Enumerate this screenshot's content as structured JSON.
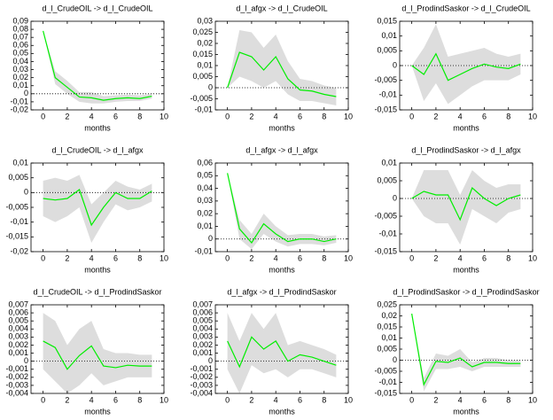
{
  "chart_data": [
    {
      "type": "line",
      "title": "d_l_CrudeOIL -> d_l_CrudeOIL",
      "xlabel": "months",
      "x": [
        0,
        1,
        2,
        3,
        4,
        5,
        6,
        7,
        8,
        9
      ],
      "xlim": [
        -1,
        10
      ],
      "xticks": [
        0,
        2,
        4,
        6,
        8,
        10
      ],
      "ylim": [
        -0.02,
        0.09
      ],
      "yticks": [
        {
          "value": -0.02,
          "label": "-0,02"
        },
        {
          "value": -0.01,
          "label": "-0,01"
        },
        0,
        {
          "value": 0.01,
          "label": "0,01"
        },
        {
          "value": 0.02,
          "label": "0,02"
        },
        {
          "value": 0.03,
          "label": "0,03"
        },
        {
          "value": 0.04,
          "label": "0,04"
        },
        {
          "value": 0.05,
          "label": "0,05"
        },
        {
          "value": 0.06,
          "label": "0,06"
        },
        {
          "value": 0.07,
          "label": "0,07"
        },
        {
          "value": 0.08,
          "label": "0,08"
        },
        {
          "value": 0.09,
          "label": "0,09"
        }
      ],
      "response": {
        "color": "#00ee00",
        "values": [
          0.078,
          0.02,
          0.008,
          -0.004,
          -0.005,
          -0.008,
          -0.006,
          -0.005,
          -0.006,
          -0.003
        ]
      },
      "band": {
        "color": "#dddddd",
        "lower": [
          0.078,
          0.012,
          0.0,
          -0.01,
          -0.012,
          -0.012,
          -0.01,
          -0.009,
          -0.009,
          -0.006
        ],
        "upper": [
          0.078,
          0.028,
          0.016,
          0.002,
          0.002,
          -0.003,
          -0.002,
          -0.001,
          -0.002,
          0.0
        ]
      }
    },
    {
      "type": "line",
      "title": "d_l_afgx -> d_l_CrudeOIL",
      "xlabel": "months",
      "x": [
        0,
        1,
        2,
        3,
        4,
        5,
        6,
        7,
        8,
        9
      ],
      "xlim": [
        -1,
        10
      ],
      "xticks": [
        0,
        2,
        4,
        6,
        8,
        10
      ],
      "ylim": [
        -0.01,
        0.03
      ],
      "yticks": [
        {
          "value": -0.01,
          "label": "-0,01"
        },
        {
          "value": -0.005,
          "label": "-0,005"
        },
        0,
        {
          "value": 0.005,
          "label": "0,005"
        },
        {
          "value": 0.01,
          "label": "0,01"
        },
        {
          "value": 0.015,
          "label": "0,015"
        },
        {
          "value": 0.02,
          "label": "0,02"
        },
        {
          "value": 0.025,
          "label": "0,025"
        },
        {
          "value": 0.03,
          "label": "0,03"
        }
      ],
      "response": {
        "color": "#00ee00",
        "values": [
          0,
          0.016,
          0.014,
          0.008,
          0.014,
          0.004,
          -0.001,
          -0.0015,
          -0.003,
          -0.004
        ]
      },
      "band": {
        "color": "#dddddd",
        "lower": [
          0,
          0.005,
          0.003,
          0,
          0.003,
          -0.003,
          -0.006,
          -0.006,
          -0.007,
          -0.008
        ],
        "upper": [
          0,
          0.026,
          0.025,
          0.018,
          0.024,
          0.012,
          0.004,
          0.003,
          0.001,
          0.0
        ]
      }
    },
    {
      "type": "line",
      "title": "d_l_ProdindSaskor -> d_l_CrudeOIL",
      "xlabel": "months",
      "x": [
        0,
        1,
        2,
        3,
        4,
        5,
        6,
        7,
        8,
        9
      ],
      "xlim": [
        -1,
        10
      ],
      "xticks": [
        0,
        2,
        4,
        6,
        8,
        10
      ],
      "ylim": [
        -0.015,
        0.015
      ],
      "yticks": [
        {
          "value": -0.015,
          "label": "-0,015"
        },
        {
          "value": -0.01,
          "label": "-0,01"
        },
        {
          "value": -0.005,
          "label": "-0,005"
        },
        0,
        {
          "value": 0.005,
          "label": "0,005"
        },
        {
          "value": 0.01,
          "label": "0,01"
        },
        {
          "value": 0.015,
          "label": "0,015"
        }
      ],
      "response": {
        "color": "#00ee00",
        "values": [
          0,
          -0.003,
          0.004,
          -0.005,
          -0.003,
          -0.001,
          0.0005,
          -0.0005,
          -0.001,
          0.0005
        ]
      },
      "band": {
        "color": "#dddddd",
        "lower": [
          0,
          -0.012,
          -0.006,
          -0.013,
          -0.01,
          -0.007,
          -0.005,
          -0.005,
          -0.005,
          -0.003
        ],
        "upper": [
          0,
          0.006,
          0.014,
          0.003,
          0.004,
          0.005,
          0.006,
          0.004,
          0.003,
          0.004
        ]
      }
    },
    {
      "type": "line",
      "title": "d_l_CrudeOIL -> d_l_afgx",
      "xlabel": "months",
      "x": [
        0,
        1,
        2,
        3,
        4,
        5,
        6,
        7,
        8,
        9
      ],
      "xlim": [
        -1,
        10
      ],
      "xticks": [
        0,
        2,
        4,
        6,
        8,
        10
      ],
      "ylim": [
        -0.02,
        0.01
      ],
      "yticks": [
        {
          "value": -0.02,
          "label": "-0,02"
        },
        {
          "value": -0.015,
          "label": "-0,015"
        },
        {
          "value": -0.01,
          "label": "-0,01"
        },
        {
          "value": -0.005,
          "label": "-0,005"
        },
        0,
        {
          "value": 0.005,
          "label": "0,005"
        },
        {
          "value": 0.01,
          "label": "0,01"
        }
      ],
      "response": {
        "color": "#00ee00",
        "values": [
          -0.002,
          -0.0025,
          -0.002,
          0.001,
          -0.011,
          -0.005,
          0,
          -0.002,
          -0.002,
          0.0005
        ]
      },
      "band": {
        "color": "#dddddd",
        "lower": [
          -0.008,
          -0.01,
          -0.008,
          -0.005,
          -0.017,
          -0.01,
          -0.004,
          -0.006,
          -0.005,
          -0.003
        ],
        "upper": [
          0.004,
          0.005,
          0.004,
          0.006,
          -0.004,
          0.0,
          0.004,
          0.002,
          0.001,
          0.003
        ]
      }
    },
    {
      "type": "line",
      "title": "d_l_afgx -> d_l_afgx",
      "xlabel": "months",
      "x": [
        0,
        1,
        2,
        3,
        4,
        5,
        6,
        7,
        8,
        9
      ],
      "xlim": [
        -1,
        10
      ],
      "xticks": [
        0,
        2,
        4,
        6,
        8,
        10
      ],
      "ylim": [
        -0.01,
        0.06
      ],
      "yticks": [
        {
          "value": -0.01,
          "label": "-0,01"
        },
        0,
        {
          "value": 0.01,
          "label": "0,01"
        },
        {
          "value": 0.02,
          "label": "0,02"
        },
        {
          "value": 0.03,
          "label": "0,03"
        },
        {
          "value": 0.04,
          "label": "0,04"
        },
        {
          "value": 0.05,
          "label": "0,05"
        },
        {
          "value": 0.06,
          "label": "0,06"
        }
      ],
      "response": {
        "color": "#00ee00",
        "values": [
          0.052,
          0.008,
          -0.003,
          0.012,
          0.004,
          -0.002,
          0.0,
          0.0,
          -0.002,
          0.0
        ]
      },
      "band": {
        "color": "#dddddd",
        "lower": [
          0.052,
          0.0,
          -0.008,
          0.004,
          -0.002,
          -0.006,
          -0.004,
          -0.004,
          -0.005,
          -0.003
        ],
        "upper": [
          0.052,
          0.015,
          0.004,
          0.02,
          0.01,
          0.003,
          0.004,
          0.004,
          0.002,
          0.003
        ]
      }
    },
    {
      "type": "line",
      "title": "d_l_ProdindSaskor -> d_l_afgx",
      "xlabel": "months",
      "x": [
        0,
        1,
        2,
        3,
        4,
        5,
        6,
        7,
        8,
        9
      ],
      "xlim": [
        -1,
        10
      ],
      "xticks": [
        0,
        2,
        4,
        6,
        8,
        10
      ],
      "ylim": [
        -0.015,
        0.01
      ],
      "yticks": [
        {
          "value": -0.015,
          "label": "-0,015"
        },
        {
          "value": -0.01,
          "label": "-0,01"
        },
        {
          "value": -0.005,
          "label": "-0,005"
        },
        0,
        {
          "value": 0.005,
          "label": "0,005"
        },
        {
          "value": 0.01,
          "label": "0,01"
        }
      ],
      "response": {
        "color": "#00ee00",
        "values": [
          0,
          0.002,
          0.001,
          0.001,
          -0.006,
          0.003,
          0,
          -0.002,
          0,
          0.001
        ]
      },
      "band": {
        "color": "#dddddd",
        "lower": [
          0,
          -0.005,
          -0.007,
          -0.007,
          -0.013,
          -0.003,
          -0.005,
          -0.007,
          -0.004,
          -0.003
        ],
        "upper": [
          0,
          0.008,
          0.008,
          0.008,
          0.001,
          0.008,
          0.005,
          0.003,
          0.004,
          0.004
        ]
      }
    },
    {
      "type": "line",
      "title": "d_l_CrudeOIL -> d_l_ProdindSaskor",
      "xlabel": "months",
      "x": [
        0,
        1,
        2,
        3,
        4,
        5,
        6,
        7,
        8,
        9
      ],
      "xlim": [
        -1,
        10
      ],
      "xticks": [
        0,
        2,
        4,
        6,
        8,
        10
      ],
      "ylim": [
        -0.004,
        0.007
      ],
      "yticks": [
        {
          "value": -0.004,
          "label": "-0,004"
        },
        {
          "value": -0.003,
          "label": "-0,003"
        },
        {
          "value": -0.002,
          "label": "-0,002"
        },
        {
          "value": -0.001,
          "label": "-0,001"
        },
        0,
        {
          "value": 0.001,
          "label": "0,001"
        },
        {
          "value": 0.002,
          "label": "0,002"
        },
        {
          "value": 0.003,
          "label": "0,003"
        },
        {
          "value": 0.004,
          "label": "0,004"
        },
        {
          "value": 0.005,
          "label": "0,005"
        },
        {
          "value": 0.006,
          "label": "0,006"
        },
        {
          "value": 0.007,
          "label": "0,007"
        }
      ],
      "response": {
        "color": "#00ee00",
        "values": [
          0.0025,
          0.0017,
          -0.001,
          0.0007,
          0.0019,
          -0.0006,
          -0.0008,
          -0.0005,
          -0.0006,
          -0.0006
        ]
      },
      "band": {
        "color": "#dddddd",
        "lower": [
          -0.001,
          -0.0025,
          -0.004,
          -0.003,
          -0.0015,
          -0.003,
          -0.0025,
          -0.002,
          -0.002,
          -0.002
        ],
        "upper": [
          0.006,
          0.005,
          0.002,
          0.004,
          0.005,
          0.0015,
          0.001,
          0.001,
          0.0008,
          0.0008
        ]
      }
    },
    {
      "type": "line",
      "title": "d_l_afgx -> d_l_ProdindSaskor",
      "xlabel": "months",
      "x": [
        0,
        1,
        2,
        3,
        4,
        5,
        6,
        7,
        8,
        9
      ],
      "xlim": [
        -1,
        10
      ],
      "xticks": [
        0,
        2,
        4,
        6,
        8,
        10
      ],
      "ylim": [
        -0.004,
        0.007
      ],
      "yticks": [
        {
          "value": -0.004,
          "label": "-0,004"
        },
        {
          "value": -0.003,
          "label": "-0,003"
        },
        {
          "value": -0.002,
          "label": "-0,002"
        },
        {
          "value": -0.001,
          "label": "-0,001"
        },
        0,
        {
          "value": 0.001,
          "label": "0,001"
        },
        {
          "value": 0.002,
          "label": "0,002"
        },
        {
          "value": 0.003,
          "label": "0,003"
        },
        {
          "value": 0.004,
          "label": "0,004"
        },
        {
          "value": 0.005,
          "label": "0,005"
        },
        {
          "value": 0.006,
          "label": "0,006"
        },
        {
          "value": 0.007,
          "label": "0,007"
        }
      ],
      "response": {
        "color": "#00ee00",
        "values": [
          0.0025,
          -0.0007,
          0.003,
          0.0015,
          0.0025,
          0.0,
          0.0008,
          0.0005,
          0,
          -0.0005
        ]
      },
      "band": {
        "color": "#dddddd",
        "lower": [
          -0.001,
          -0.004,
          -0.0005,
          -0.0015,
          -0.001,
          -0.002,
          -0.001,
          -0.001,
          -0.0015,
          -0.002
        ],
        "upper": [
          0.006,
          0.0025,
          0.006,
          0.004,
          0.006,
          0.002,
          0.0025,
          0.002,
          0.0015,
          0.0008
        ]
      }
    },
    {
      "type": "line",
      "title": "d_l_ProdindSaskor -> d_l_ProdindSaskor",
      "xlabel": "months",
      "x": [
        0,
        1,
        2,
        3,
        4,
        5,
        6,
        7,
        8,
        9
      ],
      "xlim": [
        -1,
        10
      ],
      "xticks": [
        0,
        2,
        4,
        6,
        8,
        10
      ],
      "ylim": [
        -0.015,
        0.025
      ],
      "yticks": [
        {
          "value": -0.015,
          "label": "-0,015"
        },
        {
          "value": -0.01,
          "label": "-0,01"
        },
        {
          "value": -0.005,
          "label": "-0,005"
        },
        0,
        {
          "value": 0.005,
          "label": "0,005"
        },
        {
          "value": 0.01,
          "label": "0,01"
        },
        {
          "value": 0.015,
          "label": "0,015"
        },
        {
          "value": 0.02,
          "label": "0,02"
        },
        {
          "value": 0.025,
          "label": "0,025"
        }
      ],
      "response": {
        "color": "#00ee00",
        "values": [
          0.021,
          -0.011,
          -0.0005,
          -0.001,
          0.001,
          -0.003,
          -0.001,
          -0.001,
          -0.0015,
          -0.0015
        ]
      },
      "band": {
        "color": "#dddddd",
        "lower": [
          0.021,
          -0.014,
          -0.004,
          -0.004,
          -0.003,
          -0.005,
          -0.003,
          -0.003,
          -0.003,
          -0.003
        ],
        "upper": [
          0.021,
          -0.008,
          0.003,
          0.002,
          0.005,
          -0.001,
          0.001,
          0.001,
          0.0,
          0.0
        ]
      }
    }
  ]
}
